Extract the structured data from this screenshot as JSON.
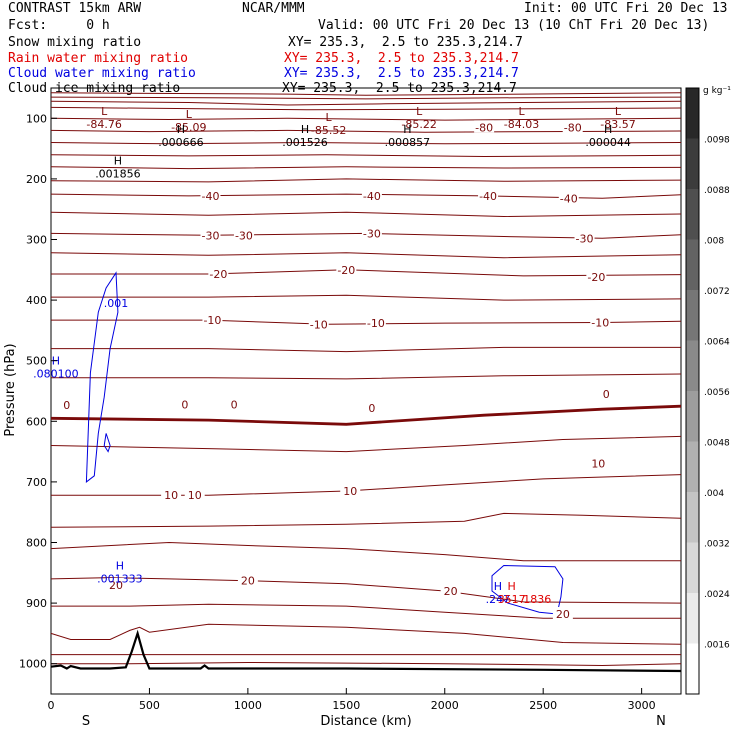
{
  "header": {
    "title": "CONTRAST 15km ARW",
    "center": "NCAR/MMM",
    "init": "Init: 00 UTC Fri 20 Dec 13",
    "fcst": "Fcst:     0 h",
    "valid": "Valid: 00 UTC Fri 20 Dec 13 (10 ChT Fri 20 Dec 13)",
    "fields": [
      {
        "name": "Snow mixing ratio",
        "xy": "XY= 235.3,  2.5 to 235.3,214.7",
        "color": "#000000"
      },
      {
        "name": "Rain water mixing ratio",
        "xy": "XY= 235.3,  2.5 to 235.3,214.7",
        "color": "#e00000"
      },
      {
        "name": "Cloud water mixing ratio",
        "xy": "XY= 235.3,  2.5 to 235.3,214.7",
        "color": "#0000e0"
      },
      {
        "name": "Cloud ice mixing ratio",
        "xy": "XY= 235.3,  2.5 to 235.3,214.7",
        "color": "#000000"
      }
    ]
  },
  "chart_data": {
    "type": "contour cross-section",
    "xlabel": "Distance (km)",
    "ylabel": "Pressure (hPa)",
    "xlim": [
      0,
      3200
    ],
    "ylim": [
      1050,
      50
    ],
    "x_ticks": [
      0,
      500,
      1000,
      1500,
      2000,
      2500,
      3000
    ],
    "y_ticks": [
      100,
      200,
      300,
      400,
      500,
      600,
      700,
      800,
      900,
      1000
    ],
    "end_labels": {
      "left": "S",
      "right": "N"
    },
    "colorbar": {
      "unit": "g kg⁻¹",
      "ticks": [
        ".0098",
        ".0088",
        ".008",
        ".0072",
        ".0064",
        ".0056",
        ".0048",
        ".004",
        ".0032",
        ".0024",
        ".0016"
      ]
    },
    "temperature_contours_color": "#7a0a0a",
    "temperature_labels": [
      {
        "x": 330,
        "p": 870,
        "text": "20"
      },
      {
        "x": 1000,
        "p": 863,
        "text": "20"
      },
      {
        "x": 2030,
        "p": 880,
        "text": "20"
      },
      {
        "x": 2600,
        "p": 918,
        "text": "20"
      },
      {
        "x": 730,
        "p": 722,
        "text": "10"
      },
      {
        "x": 610,
        "p": 722,
        "text": "10"
      },
      {
        "x": 1520,
        "p": 715,
        "text": "10"
      },
      {
        "x": 2780,
        "p": 670,
        "text": "10"
      },
      {
        "x": 80,
        "p": 573,
        "text": "0"
      },
      {
        "x": 680,
        "p": 572,
        "text": "0"
      },
      {
        "x": 930,
        "p": 572,
        "text": "0"
      },
      {
        "x": 1630,
        "p": 578,
        "text": "0"
      },
      {
        "x": 2820,
        "p": 555,
        "text": "0"
      },
      {
        "x": 820,
        "p": 433,
        "text": "-10"
      },
      {
        "x": 1360,
        "p": 440,
        "text": "-10"
      },
      {
        "x": 1650,
        "p": 438,
        "text": "-10"
      },
      {
        "x": 2790,
        "p": 437,
        "text": "-10"
      },
      {
        "x": 850,
        "p": 357,
        "text": "-20"
      },
      {
        "x": 1500,
        "p": 350,
        "text": "-20"
      },
      {
        "x": 2770,
        "p": 362,
        "text": "-20"
      },
      {
        "x": 810,
        "p": 293,
        "text": "-30"
      },
      {
        "x": 980,
        "p": 293,
        "text": "-30"
      },
      {
        "x": 1630,
        "p": 290,
        "text": "-30"
      },
      {
        "x": 2710,
        "p": 298,
        "text": "-30"
      },
      {
        "x": 810,
        "p": 228,
        "text": "-40"
      },
      {
        "x": 1630,
        "p": 228,
        "text": "-40"
      },
      {
        "x": 2220,
        "p": 228,
        "text": "-40"
      },
      {
        "x": 2630,
        "p": 232,
        "text": "-40"
      },
      {
        "x": 2200,
        "p": 115,
        "text": "-80"
      },
      {
        "x": 2650,
        "p": 115,
        "text": "-80"
      }
    ],
    "extrema": [
      {
        "x": 270,
        "p": 88,
        "mark": "L",
        "value": "-84.76",
        "color": "#7a0a0a"
      },
      {
        "x": 700,
        "p": 93,
        "mark": "L",
        "value": "-85.09",
        "color": "#7a0a0a"
      },
      {
        "x": 1410,
        "p": 98,
        "mark": "L",
        "value": "-85.52",
        "color": "#7a0a0a"
      },
      {
        "x": 1870,
        "p": 88,
        "mark": "L",
        "value": "-85.22",
        "color": "#7a0a0a"
      },
      {
        "x": 2390,
        "p": 88,
        "mark": "L",
        "value": "-84.03",
        "color": "#7a0a0a"
      },
      {
        "x": 2880,
        "p": 88,
        "mark": "L",
        "value": "-83.57",
        "color": "#7a0a0a"
      },
      {
        "x": 660,
        "p": 118,
        "mark": "H",
        "value": ".000666",
        "color": "#000000"
      },
      {
        "x": 1290,
        "p": 118,
        "mark": "H",
        "value": ".001526",
        "color": "#000000"
      },
      {
        "x": 1810,
        "p": 118,
        "mark": "H",
        "value": ".000857",
        "color": "#000000"
      },
      {
        "x": 2830,
        "p": 118,
        "mark": "H",
        "value": ".000044",
        "color": "#000000"
      },
      {
        "x": 340,
        "p": 170,
        "mark": "H",
        "value": ".001856",
        "color": "#000000"
      },
      {
        "x": 25,
        "p": 500,
        "mark": "H",
        "value": ".080100",
        "color": "#0000e0"
      },
      {
        "x": 350,
        "p": 838,
        "mark": "H",
        "value": ".001333",
        "color": "#0000e0"
      },
      {
        "x": 2270,
        "p": 872,
        "mark": "H",
        "value": ".247",
        "color": "#0000e0"
      },
      {
        "x": 2340,
        "p": 872,
        "mark": "H",
        "value": "3517",
        "color": "#e00000"
      },
      {
        "x": 2470,
        "p": 872,
        "mark": "",
        "value": "1836",
        "color": "#e00000"
      }
    ],
    "cloud_water_labels": [
      {
        "x": 330,
        "p": 405,
        "text": ".001"
      }
    ],
    "terrain": [
      [
        0,
        1005
      ],
      [
        50,
        1003
      ],
      [
        80,
        1008
      ],
      [
        100,
        1004
      ],
      [
        150,
        1008
      ],
      [
        300,
        1008
      ],
      [
        380,
        1006
      ],
      [
        410,
        980
      ],
      [
        440,
        950
      ],
      [
        470,
        985
      ],
      [
        500,
        1008
      ],
      [
        760,
        1008
      ],
      [
        780,
        1003
      ],
      [
        800,
        1008
      ],
      [
        1500,
        1008
      ],
      [
        2500,
        1010
      ],
      [
        3200,
        1012
      ]
    ]
  }
}
